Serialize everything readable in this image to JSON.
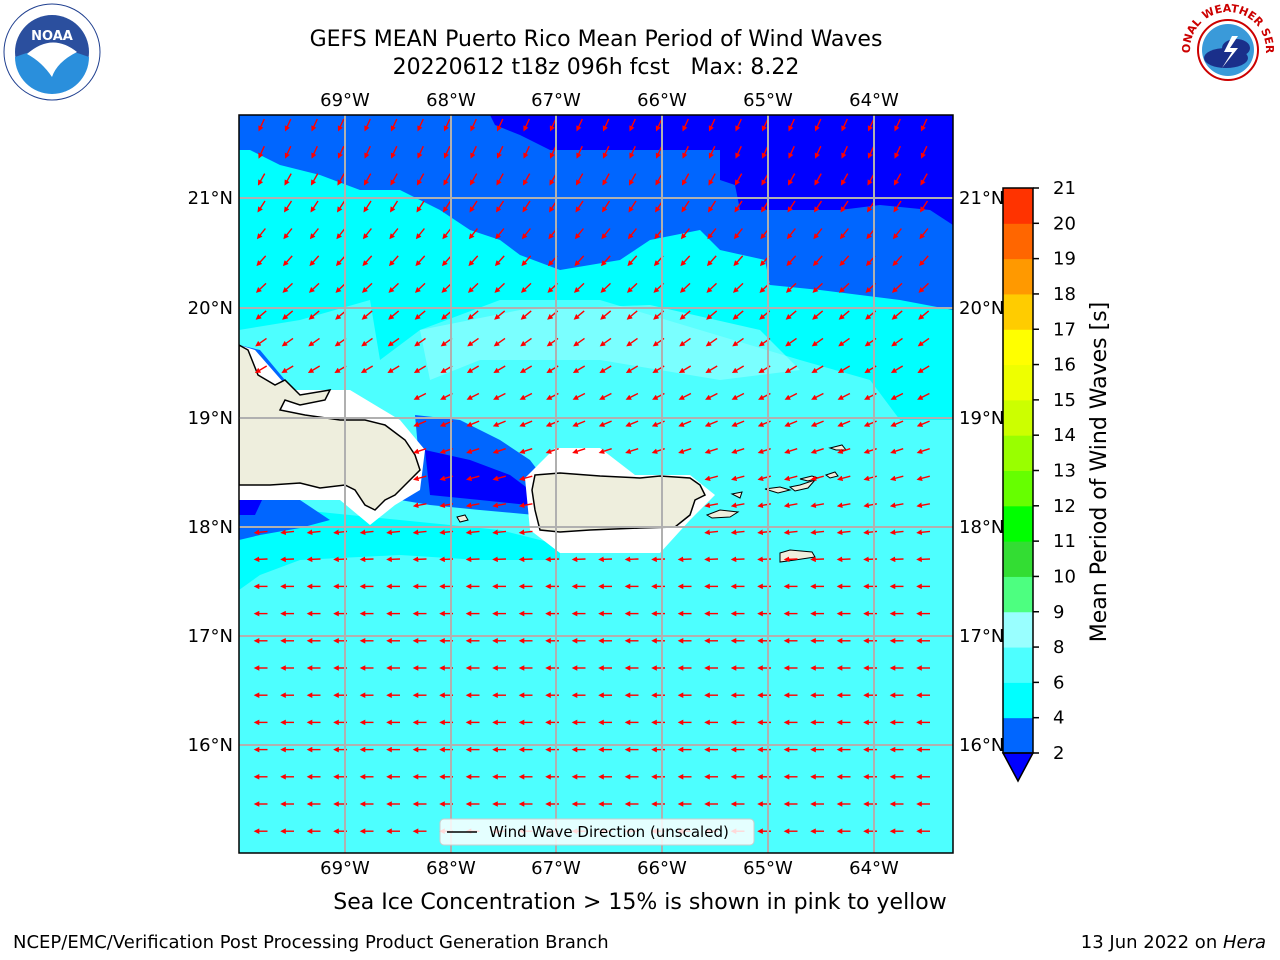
{
  "title": {
    "line1": "GEFS MEAN Puerto Rico Mean Period of Wind Waves",
    "line2": "20220612 t18z 096h fcst   Max: 8.22"
  },
  "map": {
    "lon_ticks": [
      "69°W",
      "68°W",
      "67°W",
      "66°W",
      "65°W",
      "64°W"
    ],
    "lat_ticks": [
      "21°N",
      "20°N",
      "19°N",
      "18°N",
      "17°N",
      "16°N"
    ],
    "legend_label": "Wind Wave Direction (unscaled)",
    "arrow_color": "#ff0000",
    "land_color": "#eeeedd"
  },
  "colorbar": {
    "label": "Mean Period of Wind Waves [s]",
    "ticks": [
      "2",
      "4",
      "6",
      "8",
      "9",
      "10",
      "11",
      "12",
      "13",
      "14",
      "15",
      "16",
      "17",
      "18",
      "19",
      "20",
      "21"
    ],
    "colors": [
      "#0066ff",
      "#00ffff",
      "#4dffff",
      "#99ffff",
      "#4dff80",
      "#33dd33",
      "#00ff00",
      "#66ff00",
      "#99ff00",
      "#ccff00",
      "#eeff00",
      "#ffff00",
      "#ffcc00",
      "#ff9900",
      "#ff6600",
      "#ff3300"
    ],
    "under_color": "#0000ff"
  },
  "footer": {
    "note": "Sea Ice Concentration > 15% is shown in pink to yellow",
    "left": "NCEP/EMC/Verification Post Processing Product Generation Branch",
    "right_date": "13 Jun 2022 on ",
    "right_host": "Hera"
  },
  "logos": {
    "noaa_text": "NOAA",
    "nws_text": "NATIONAL WEATHER SERVICE"
  }
}
